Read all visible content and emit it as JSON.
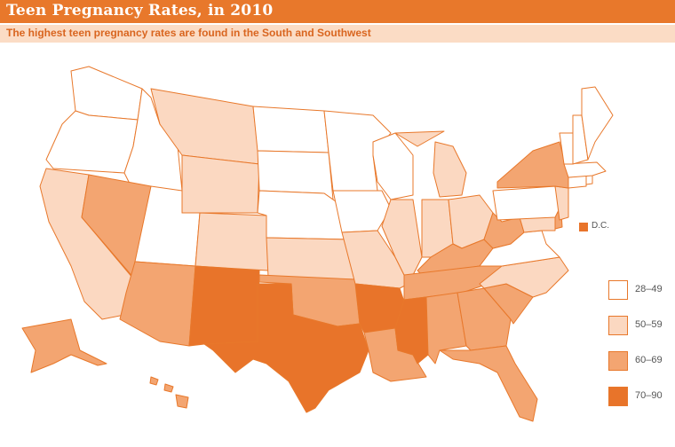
{
  "title": "Teen Pregnancy Rates, in 2010",
  "subtitle": "The highest teen pregnancy rates are found in the South and Southwest",
  "colors": {
    "28–49": "#ffffff",
    "50–59": "#fbd8c1",
    "60–69": "#f3a571",
    "70–90": "#e8742a",
    "border": "#e8782b"
  },
  "legend": [
    {
      "label": "28–49",
      "color": "#ffffff"
    },
    {
      "label": "50–59",
      "color": "#fbd8c1"
    },
    {
      "label": "60–69",
      "color": "#f3a571"
    },
    {
      "label": "70–90",
      "color": "#e8742a"
    }
  ],
  "dc": {
    "label": "D.C.",
    "category": "70–90"
  },
  "states": {
    "WA": "28–49",
    "OR": "28–49",
    "CA": "50–59",
    "ID": "28–49",
    "NV": "60–69",
    "UT": "28–49",
    "AZ": "60–69",
    "MT": "50–59",
    "WY": "50–59",
    "CO": "50–59",
    "NM": "70–90",
    "ND": "28–49",
    "SD": "28–49",
    "NE": "28–49",
    "KS": "50–59",
    "OK": "60–69",
    "TX": "70–90",
    "MN": "28–49",
    "IA": "28–49",
    "MO": "50–59",
    "AR": "70–90",
    "LA": "60–69",
    "WI": "28–49",
    "IL": "50–59",
    "MI": "50–59",
    "IN": "50–59",
    "OH": "50–59",
    "KY": "60–69",
    "TN": "60–69",
    "MS": "70–90",
    "AL": "60–69",
    "GA": "60–69",
    "FL": "60–69",
    "SC": "60–69",
    "NC": "50–59",
    "VA": "28–49",
    "WV": "60–69",
    "MD": "50–59",
    "DE": "60–69",
    "PA": "28–49",
    "NJ": "50–59",
    "NY": "60–69",
    "CT": "28–49",
    "RI": "28–49",
    "MA": "28–49",
    "VT": "28–49",
    "NH": "28–49",
    "ME": "28–49",
    "AK": "60–69",
    "HI": "60–69"
  }
}
